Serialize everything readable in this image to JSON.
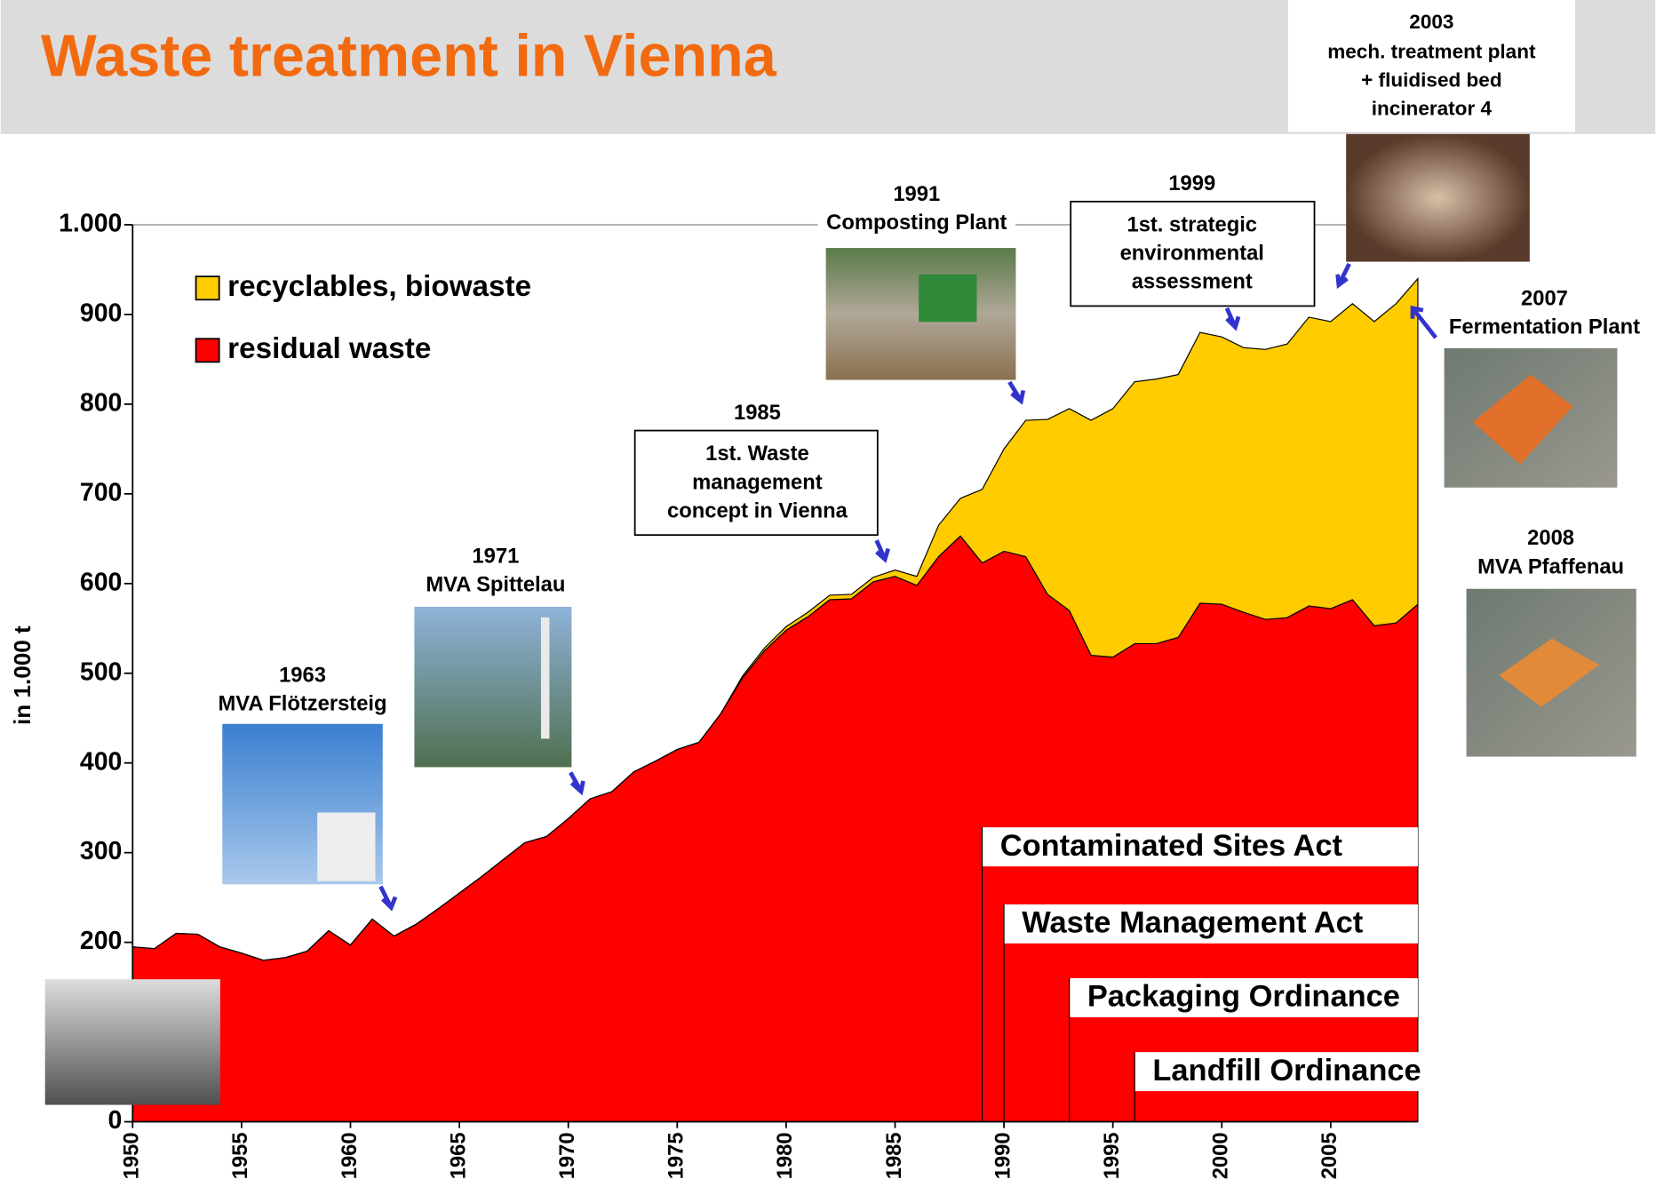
{
  "chart_data": {
    "type": "stacked_area",
    "title": "Waste treatment in Vienna",
    "y_label": "in 1.000 t",
    "x": [
      1950,
      1951,
      1952,
      1953,
      1954,
      1955,
      1956,
      1957,
      1958,
      1959,
      1960,
      1961,
      1962,
      1963,
      1964,
      1965,
      1966,
      1967,
      1968,
      1969,
      1970,
      1971,
      1972,
      1973,
      1974,
      1975,
      1976,
      1977,
      1978,
      1979,
      1980,
      1981,
      1982,
      1983,
      1984,
      1985,
      1986,
      1987,
      1988,
      1989,
      1990,
      1991,
      1992,
      1993,
      1994,
      1995,
      1996,
      1997,
      1998,
      1999,
      2000,
      2001,
      2002,
      2003,
      2004,
      2005,
      2006,
      2007,
      2008,
      2009
    ],
    "series": [
      {
        "name": "residual waste",
        "color": "#ff0000",
        "values": [
          195,
          193,
          210,
          209,
          195,
          188,
          180,
          183,
          190,
          213,
          197,
          226,
          207,
          220,
          237,
          255,
          273,
          292,
          311,
          318,
          338,
          360,
          368,
          390,
          402,
          415,
          423,
          455,
          495,
          525,
          548,
          563,
          582,
          583,
          602,
          608,
          598,
          630,
          653,
          623,
          636,
          630,
          588,
          570,
          520,
          518,
          533,
          533,
          540,
          578,
          577,
          568,
          560,
          562,
          575,
          572,
          582,
          553,
          556,
          577
        ]
      },
      {
        "name": "recyclables, biowaste",
        "color": "#ffcc00",
        "values": [
          0,
          0,
          0,
          0,
          0,
          0,
          0,
          0,
          0,
          0,
          0,
          0,
          0,
          0,
          0,
          0,
          0,
          0,
          0,
          0,
          0,
          0,
          0,
          0,
          0,
          0,
          0,
          0,
          2,
          3,
          4,
          5,
          5,
          5,
          5,
          7,
          10,
          35,
          42,
          82,
          114,
          152,
          195,
          225,
          262,
          277,
          292,
          295,
          293,
          302,
          298,
          295,
          301,
          305,
          322,
          320,
          330,
          339,
          356,
          363
        ]
      }
    ],
    "xlim": [
      1950,
      2009
    ],
    "xticks": [
      1950,
      1955,
      1960,
      1965,
      1970,
      1975,
      1980,
      1985,
      1990,
      1995,
      2000,
      2005
    ],
    "ylim": [
      0,
      1000
    ],
    "yticks": [
      0,
      100,
      200,
      300,
      400,
      500,
      600,
      700,
      800,
      900,
      {
        "value": 1000,
        "label": "1.000"
      }
    ],
    "grid": false,
    "legend": "top-left",
    "laws": [
      {
        "label": "Contaminated Sites Act",
        "x": 1989
      },
      {
        "label": "Waste Management Act",
        "x": 1990
      },
      {
        "label": "Packaging Ordinance",
        "x": 1993
      },
      {
        "label": "Landfill Ordinance",
        "x": 1996
      }
    ],
    "annotations": [
      {
        "lines": [
          "1963",
          "MVA Flötzersteig"
        ]
      },
      {
        "lines": [
          "1971",
          "MVA Spittelau"
        ]
      },
      {
        "lines": [
          "1985",
          "1st. Waste",
          "management",
          "concept in Vienna"
        ]
      },
      {
        "lines": [
          "1991",
          "Composting Plant"
        ]
      },
      {
        "lines": [
          "1999",
          "1st. strategic",
          "environmental",
          "assessment"
        ]
      },
      {
        "lines": [
          "2003",
          "mech. treatment plant",
          "+ fluidised bed",
          "incinerator 4"
        ]
      },
      {
        "lines": [
          "2007",
          "Fermentation Plant"
        ]
      },
      {
        "lines": [
          "2008",
          "MVA Pfaffenau"
        ]
      }
    ]
  }
}
